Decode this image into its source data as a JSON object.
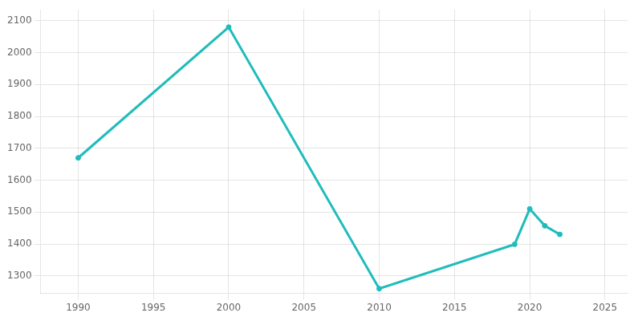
{
  "chart_data": {
    "type": "line",
    "x": [
      1990,
      2000,
      2010,
      2019,
      2020,
      2021,
      2022
    ],
    "values": [
      1670,
      2080,
      1260,
      1399,
      1510,
      1457,
      1430
    ],
    "color": "#20BCBC",
    "marker": "circle",
    "xlim": [
      1987.5,
      2026.5
    ],
    "ylim": [
      1245,
      2135
    ],
    "xticks": [
      1990,
      1995,
      2000,
      2005,
      2010,
      2015,
      2020,
      2025
    ],
    "yticks": [
      1300,
      1400,
      1500,
      1600,
      1700,
      1800,
      1900,
      2000,
      2100
    ],
    "grid": true
  }
}
